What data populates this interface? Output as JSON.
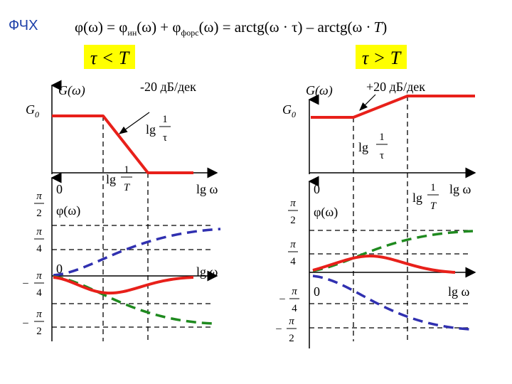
{
  "title": "ФЧХ",
  "formula": {
    "lhs": "φ(ω) = φ",
    "sub_in": "ин",
    "mid": "(ω) + φ",
    "sub_fors": "форс",
    "rhs_a": "(ω) = arctg(ω · τ) – arctg(ω ·",
    "rhs_T": "T",
    "rhs_close": ")"
  },
  "colors": {
    "highlight_box": "#ffff00",
    "red": "#e8201a",
    "green": "#1f8a1f",
    "blue": "#3030b0",
    "title": "#1c3fa8",
    "axis": "#000000"
  },
  "left_panel": {
    "condition": "τ < T",
    "amp": {
      "y_axis_label": "G(ω)",
      "g0_label": "G",
      "g0_sub": "0",
      "slope_label": "-20 дБ/дек",
      "freq_tau_lg": "lg",
      "freq_tau_num": "1",
      "freq_tau_den": "τ",
      "freq_T_lg": "lg",
      "freq_T_num": "1",
      "freq_T_den": "T",
      "x_axis_label": "lg ω",
      "origin_label": "0"
    },
    "phase": {
      "y_axis_label": "φ(ω)",
      "tick_pi2_num": "π",
      "tick_pi2_den": "2",
      "tick_pi4_num": "π",
      "tick_pi4_den": "4",
      "tick_mpi4_minus": "–",
      "tick_mpi4_num": "π",
      "tick_mpi4_den": "4",
      "tick_mpi2_minus": "–",
      "tick_mpi2_num": "π",
      "tick_mpi2_den": "2",
      "x_axis_label": "lg ω",
      "origin_label": "0"
    }
  },
  "right_panel": {
    "condition": "τ > T",
    "amp": {
      "y_axis_label": "G(ω)",
      "g0_label": "G",
      "g0_sub": "0",
      "slope_label": "+20 дБ/дек",
      "freq_tau_lg": "lg",
      "freq_tau_num": "1",
      "freq_tau_den": "τ",
      "freq_T_lg": "lg",
      "freq_T_num": "1",
      "freq_T_den": "T",
      "x_axis_label": "lg ω",
      "origin_label": "0"
    },
    "phase": {
      "y_axis_label": "φ(ω)",
      "tick_pi2_num": "π",
      "tick_pi2_den": "2",
      "tick_pi4_num": "π",
      "tick_pi4_den": "4",
      "tick_mpi4_minus": "–",
      "tick_mpi4_num": "π",
      "tick_mpi4_den": "4",
      "tick_mpi2_minus": "–",
      "tick_mpi2_num": "π",
      "tick_mpi2_den": "2",
      "x_axis_label": "lg ω",
      "origin_label": "0"
    }
  }
}
